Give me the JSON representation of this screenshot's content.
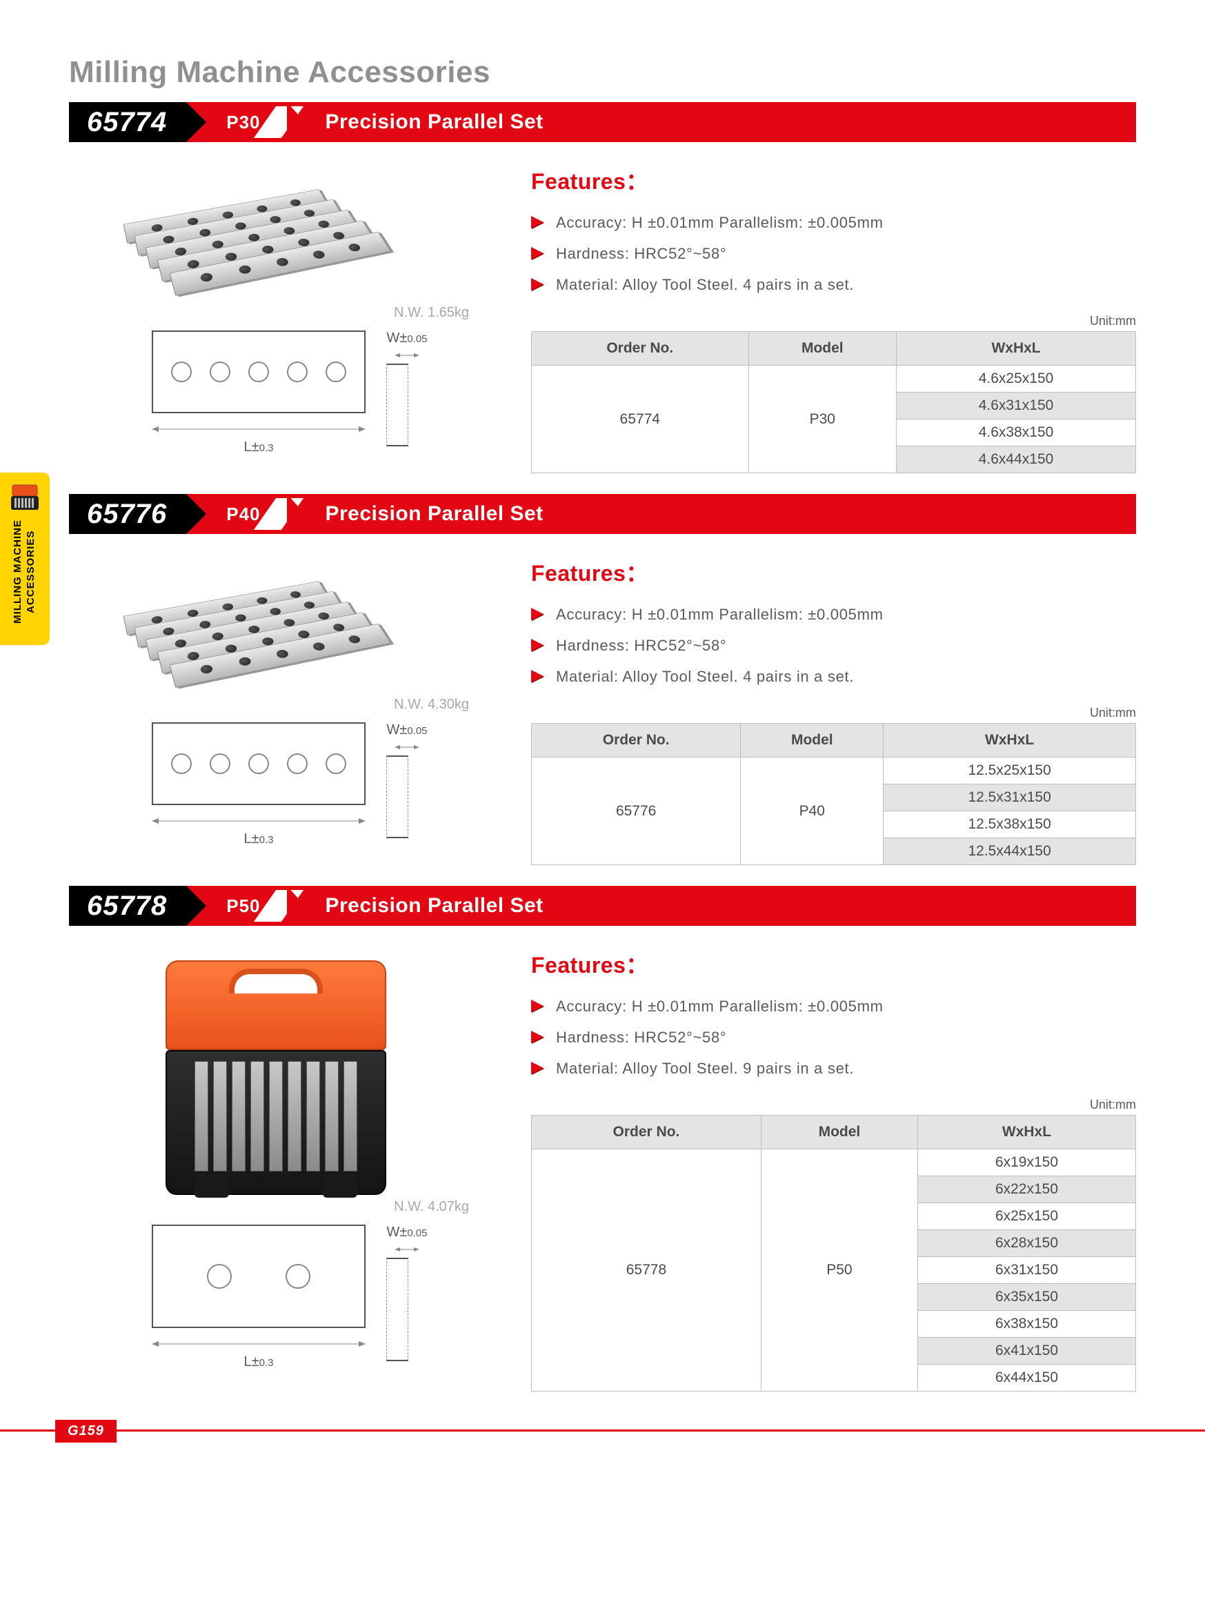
{
  "page_title": "Milling Machine Accessories",
  "side_tab": {
    "line1": "MILLING MACHINE",
    "line2": "ACCESSORIES"
  },
  "page_number": "G159",
  "features_label": "Features：",
  "unit_label": "Unit:mm",
  "table_headers": {
    "order_no": "Order No.",
    "model": "Model",
    "dims": "WxHxL"
  },
  "diagram": {
    "w_label": "W±0.05",
    "l_label": "L±0.3"
  },
  "products": [
    {
      "part_no": "65774",
      "model": "P30",
      "title": "Precision Parallel Set",
      "nw": "N.W. 1.65kg",
      "features": [
        "Accuracy: H ±0.01mm Parallelism: ±0.005mm",
        "Hardness: HRC52°~58°",
        "Material: Alloy Tool Steel. 4 pairs in a set."
      ],
      "order_no": "65774",
      "tbl_model": "P30",
      "rows": [
        "4.6x25x150",
        "4.6x31x150",
        "4.6x38x150",
        "4.6x44x150"
      ],
      "diagram_holes": 5,
      "image_kind": "bars"
    },
    {
      "part_no": "65776",
      "model": "P40",
      "title": "Precision Parallel Set",
      "nw": "N.W. 4.30kg",
      "features": [
        "Accuracy: H ±0.01mm Parallelism: ±0.005mm",
        "Hardness: HRC52°~58°",
        "Material: Alloy Tool Steel. 4 pairs in a set."
      ],
      "order_no": "65776",
      "tbl_model": "P40",
      "rows": [
        "12.5x25x150",
        "12.5x31x150",
        "12.5x38x150",
        "12.5x44x150"
      ],
      "diagram_holes": 5,
      "image_kind": "bars"
    },
    {
      "part_no": "65778",
      "model": "P50",
      "title": "Precision Parallel Set",
      "nw": "N.W. 4.07kg",
      "features": [
        "Accuracy: H ±0.01mm Parallelism: ±0.005mm",
        "Hardness: HRC52°~58°",
        "Material: Alloy Tool Steel. 9 pairs in a set."
      ],
      "order_no": "65778",
      "tbl_model": "P50",
      "rows": [
        "6x19x150",
        "6x22x150",
        "6x25x150",
        "6x28x150",
        "6x31x150",
        "6x35x150",
        "6x38x150",
        "6x41x150",
        "6x44x150"
      ],
      "diagram_holes": 2,
      "image_kind": "case"
    }
  ]
}
